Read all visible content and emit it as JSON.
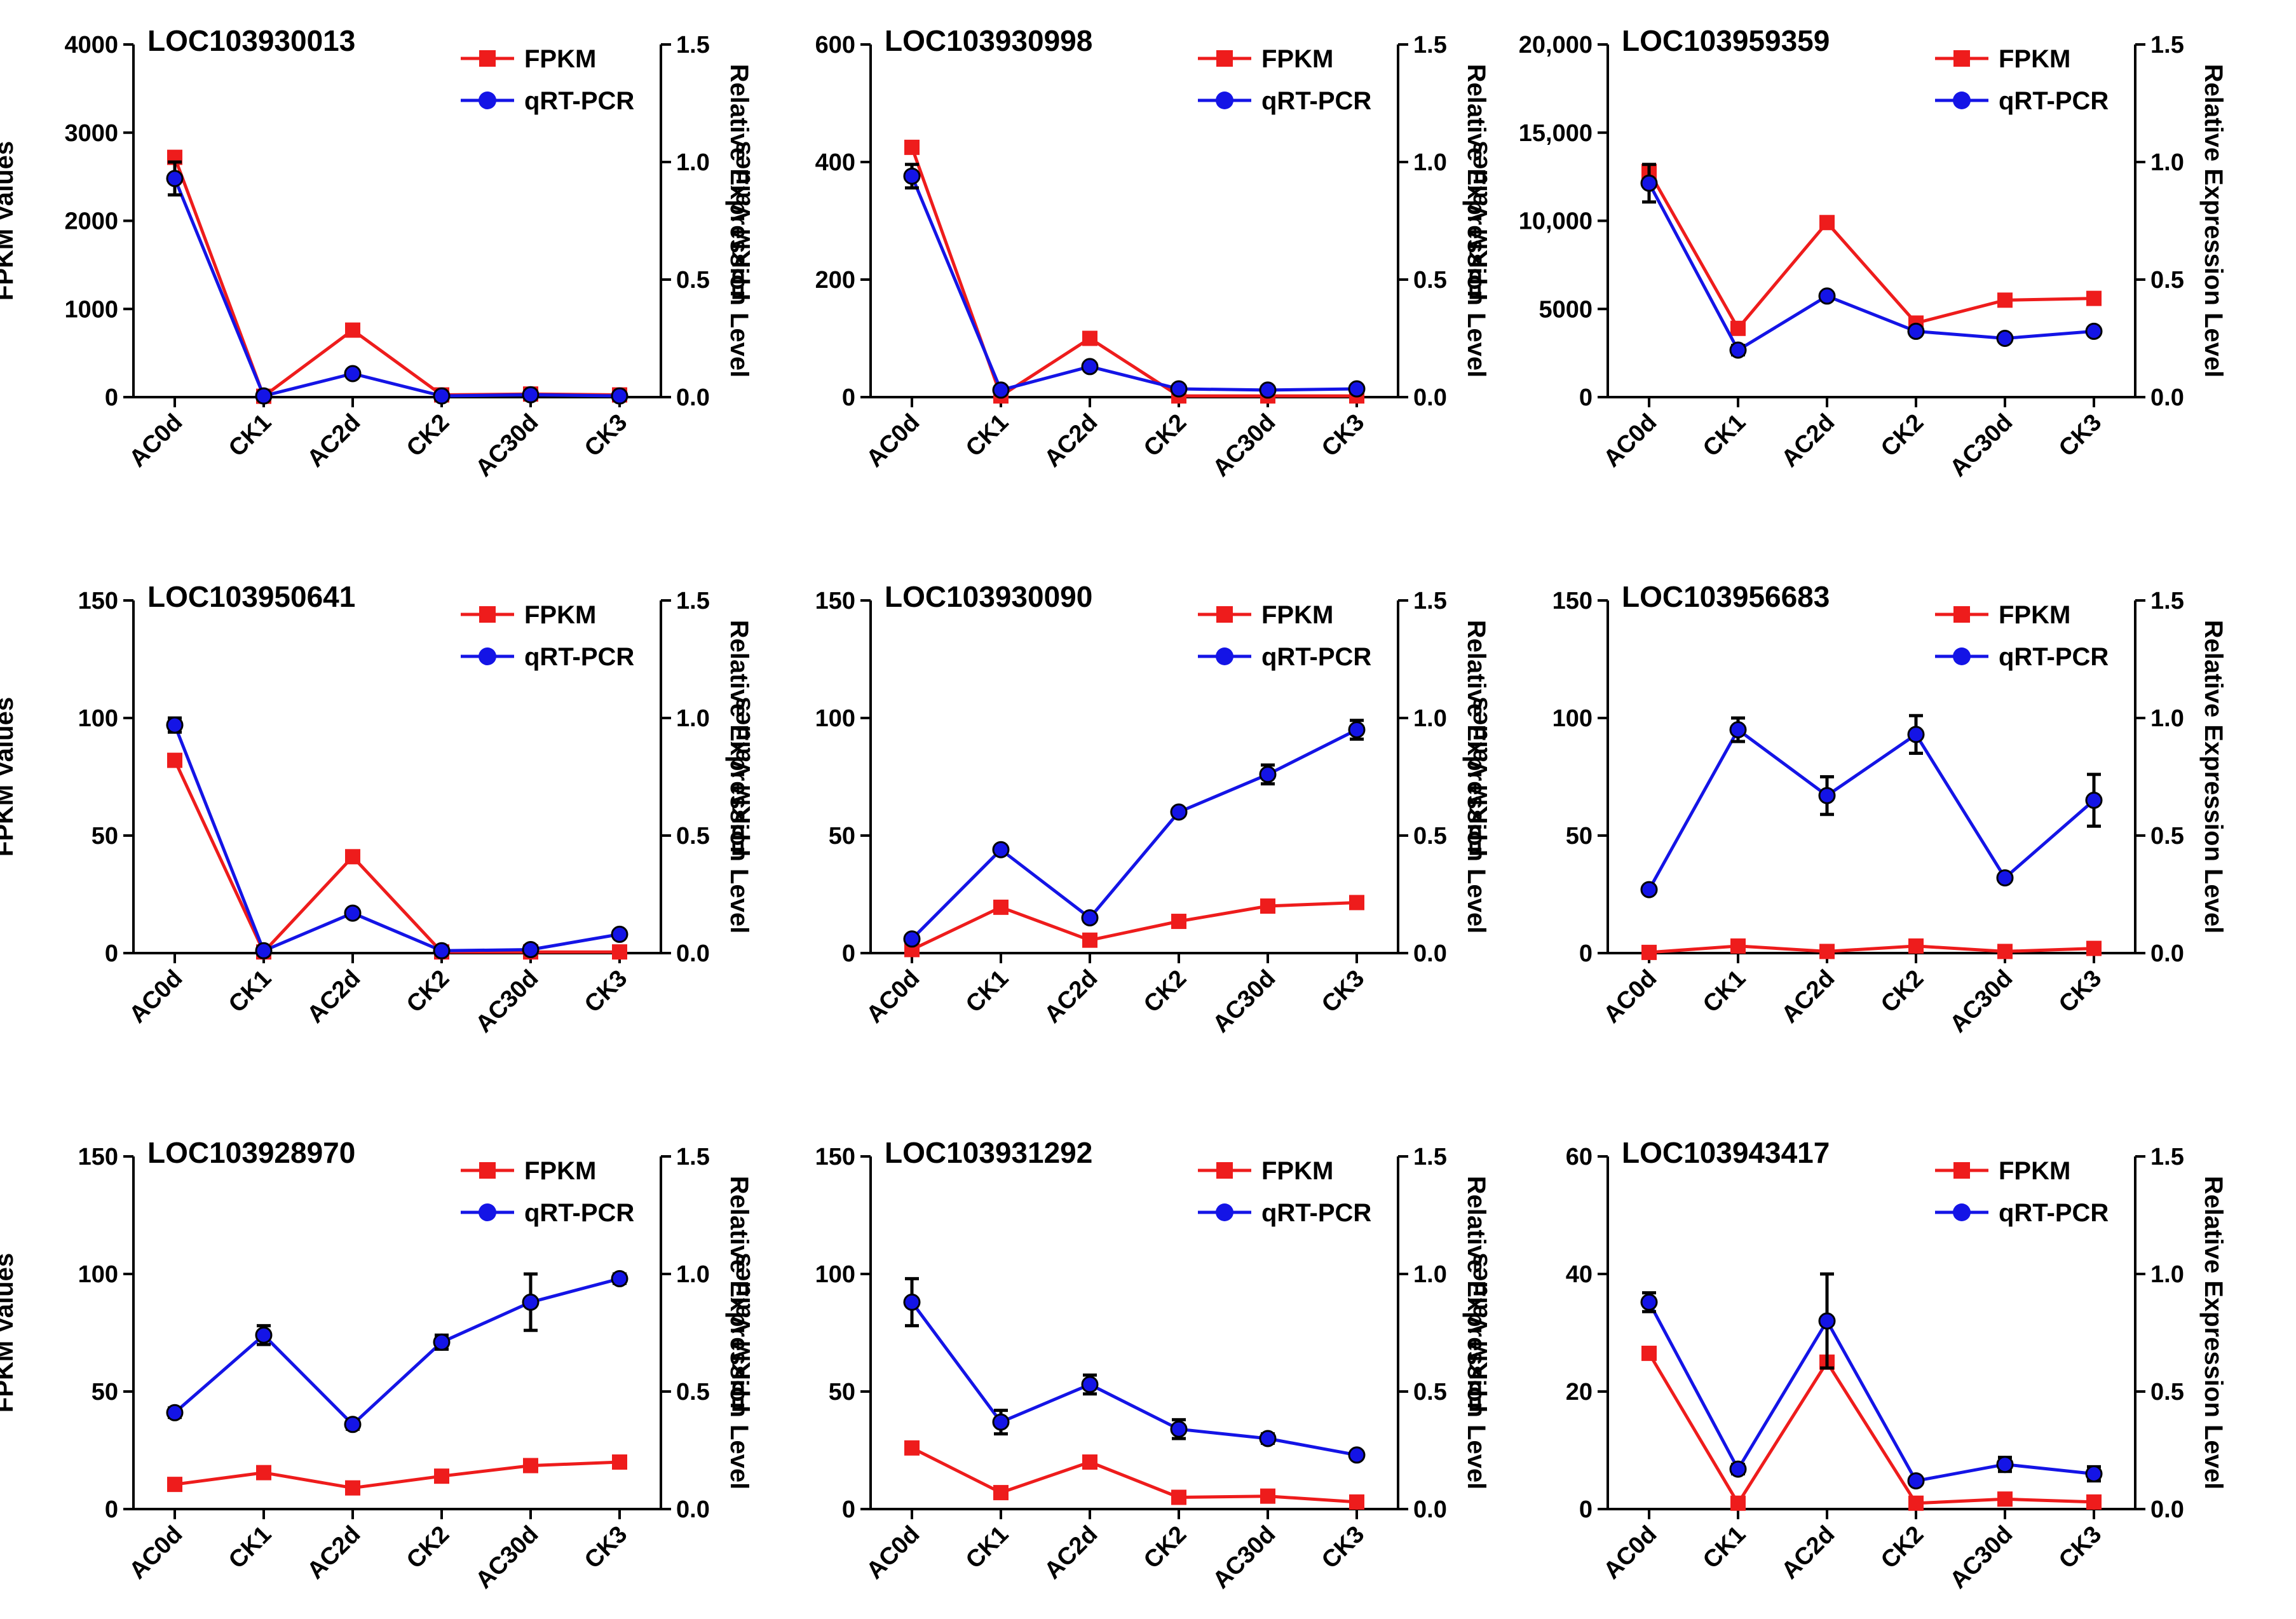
{
  "figure": {
    "legend_fpkm": "FPKM",
    "legend_qrt": "qRT-PCR",
    "colors": {
      "fpkm": "#ee1c1c",
      "qrt": "#1414e6",
      "axis": "#000000"
    }
  },
  "chart_data": [
    {
      "type": "line",
      "title": "LOC103930013",
      "categories": [
        "AC0d",
        "CK1",
        "AC2d",
        "CK2",
        "AC30d",
        "CK3"
      ],
      "ylabel": "FPKM Values",
      "y2label": "Relative Expression Level",
      "ylim": [
        0,
        4000
      ],
      "yticks": [
        0,
        1000,
        2000,
        3000,
        4000
      ],
      "yticklabels": [
        "0",
        "1000",
        "2000",
        "3000",
        "4000"
      ],
      "y2lim": [
        0,
        1.5
      ],
      "y2ticks": [
        0.0,
        0.5,
        1.0,
        1.5
      ],
      "y2ticklabels": [
        "0.0",
        "0.5",
        "1.0",
        "1.5"
      ],
      "series": [
        {
          "name": "FPKM",
          "axis": "left",
          "values": [
            2720,
            10,
            760,
            25,
            35,
            25
          ]
        },
        {
          "name": "qRT-PCR",
          "axis": "right",
          "values": [
            0.93,
            0.005,
            0.1,
            0.005,
            0.01,
            0.005
          ],
          "errors": [
            0.07,
            0,
            0,
            0,
            0,
            0
          ]
        }
      ]
    },
    {
      "type": "line",
      "title": "LOC103930998",
      "categories": [
        "AC0d",
        "CK1",
        "AC2d",
        "CK2",
        "AC30d",
        "CK3"
      ],
      "ylabel": "FPKM Values",
      "y2label": "Relative Expression Level",
      "ylim": [
        0,
        600
      ],
      "yticks": [
        0,
        200,
        400,
        600
      ],
      "yticklabels": [
        "0",
        "200",
        "400",
        "600"
      ],
      "y2lim": [
        0,
        1.5
      ],
      "y2ticks": [
        0.0,
        0.5,
        1.0,
        1.5
      ],
      "y2ticklabels": [
        "0.0",
        "0.5",
        "1.0",
        "1.5"
      ],
      "series": [
        {
          "name": "FPKM",
          "axis": "left",
          "values": [
            425,
            2,
            100,
            2,
            2,
            2
          ]
        },
        {
          "name": "qRT-PCR",
          "axis": "right",
          "values": [
            0.94,
            0.03,
            0.13,
            0.035,
            0.03,
            0.035
          ],
          "errors": [
            0.05,
            0,
            0,
            0,
            0,
            0
          ]
        }
      ]
    },
    {
      "type": "line",
      "title": "LOC103959359",
      "categories": [
        "AC0d",
        "CK1",
        "AC2d",
        "CK2",
        "AC30d",
        "CK3"
      ],
      "ylabel": "FPKM Values",
      "y2label": "Relative Expression Level",
      "ylim": [
        0,
        20000
      ],
      "yticks": [
        0,
        5000,
        10000,
        15000,
        20000
      ],
      "yticklabels": [
        "0",
        "5000",
        "10,000",
        "15,000",
        "20,000"
      ],
      "y2lim": [
        0,
        1.5
      ],
      "y2ticks": [
        0.0,
        0.5,
        1.0,
        1.5
      ],
      "y2ticklabels": [
        "0.0",
        "0.5",
        "1.0",
        "1.5"
      ],
      "series": [
        {
          "name": "FPKM",
          "axis": "left",
          "values": [
            12800,
            3900,
            9900,
            4200,
            5500,
            5600
          ]
        },
        {
          "name": "qRT-PCR",
          "axis": "right",
          "values": [
            0.91,
            0.2,
            0.43,
            0.28,
            0.25,
            0.28
          ],
          "errors": [
            0.08,
            0.02,
            0,
            0.01,
            0,
            0
          ]
        }
      ]
    },
    {
      "type": "line",
      "title": "LOC103950641",
      "categories": [
        "AC0d",
        "CK1",
        "AC2d",
        "CK2",
        "AC30d",
        "CK3"
      ],
      "ylabel": "FPKM Values",
      "y2label": "Relative Expression Level",
      "ylim": [
        0,
        150
      ],
      "yticks": [
        0,
        50,
        100,
        150
      ],
      "yticklabels": [
        "0",
        "50",
        "100",
        "150"
      ],
      "y2lim": [
        0,
        1.5
      ],
      "y2ticks": [
        0.0,
        0.5,
        1.0,
        1.5
      ],
      "y2ticklabels": [
        "0.0",
        "0.5",
        "1.0",
        "1.5"
      ],
      "series": [
        {
          "name": "FPKM",
          "axis": "left",
          "values": [
            82,
            0.5,
            41,
            0.5,
            0.5,
            0.5
          ]
        },
        {
          "name": "qRT-PCR",
          "axis": "right",
          "values": [
            0.97,
            0.01,
            0.17,
            0.01,
            0.015,
            0.08
          ],
          "errors": [
            0.03,
            0,
            0,
            0,
            0,
            0
          ]
        }
      ]
    },
    {
      "type": "line",
      "title": "LOC103930090",
      "categories": [
        "AC0d",
        "CK1",
        "AC2d",
        "CK2",
        "AC30d",
        "CK3"
      ],
      "ylabel": "FPKM Values",
      "y2label": "Relative Expression Level",
      "ylim": [
        0,
        150
      ],
      "yticks": [
        0,
        50,
        100,
        150
      ],
      "yticklabels": [
        "0",
        "50",
        "100",
        "150"
      ],
      "y2lim": [
        0,
        1.5
      ],
      "y2ticks": [
        0.0,
        0.5,
        1.0,
        1.5
      ],
      "y2ticklabels": [
        "0.0",
        "0.5",
        "1.0",
        "1.5"
      ],
      "series": [
        {
          "name": "FPKM",
          "axis": "left",
          "values": [
            1.5,
            19.5,
            5.5,
            13.5,
            20,
            21.5
          ]
        },
        {
          "name": "qRT-PCR",
          "axis": "right",
          "values": [
            0.06,
            0.44,
            0.15,
            0.6,
            0.76,
            0.95
          ],
          "errors": [
            0,
            0,
            0,
            0,
            0.04,
            0.04
          ]
        }
      ]
    },
    {
      "type": "line",
      "title": "LOC103956683",
      "categories": [
        "AC0d",
        "CK1",
        "AC2d",
        "CK2",
        "AC30d",
        "CK3"
      ],
      "ylabel": "FPKM Values",
      "y2label": "Relative Expression Level",
      "ylim": [
        0,
        150
      ],
      "yticks": [
        0,
        50,
        100,
        150
      ],
      "yticklabels": [
        "0",
        "50",
        "100",
        "150"
      ],
      "y2lim": [
        0,
        1.5
      ],
      "y2ticks": [
        0.0,
        0.5,
        1.0,
        1.5
      ],
      "y2ticklabels": [
        "0.0",
        "0.5",
        "1.0",
        "1.5"
      ],
      "series": [
        {
          "name": "FPKM",
          "axis": "left",
          "values": [
            0.3,
            3,
            0.7,
            3,
            0.7,
            2
          ]
        },
        {
          "name": "qRT-PCR",
          "axis": "right",
          "values": [
            0.27,
            0.95,
            0.67,
            0.93,
            0.32,
            0.65
          ],
          "errors": [
            0,
            0.05,
            0.08,
            0.08,
            0,
            0.11
          ]
        }
      ]
    },
    {
      "type": "line",
      "title": "LOC103928970",
      "categories": [
        "AC0d",
        "CK1",
        "AC2d",
        "CK2",
        "AC30d",
        "CK3"
      ],
      "ylabel": "FPKM Values",
      "y2label": "Relative Expression Level",
      "ylim": [
        0,
        150
      ],
      "yticks": [
        0,
        50,
        100,
        150
      ],
      "yticklabels": [
        "0",
        "50",
        "100",
        "150"
      ],
      "y2lim": [
        0,
        1.5
      ],
      "y2ticks": [
        0.0,
        0.5,
        1.0,
        1.5
      ],
      "y2ticklabels": [
        "0.0",
        "0.5",
        "1.0",
        "1.5"
      ],
      "series": [
        {
          "name": "FPKM",
          "axis": "left",
          "values": [
            10.5,
            15.5,
            9,
            14,
            18.5,
            20
          ]
        },
        {
          "name": "qRT-PCR",
          "axis": "right",
          "values": [
            0.41,
            0.74,
            0.36,
            0.71,
            0.88,
            0.98
          ],
          "errors": [
            0.02,
            0.04,
            0.02,
            0.03,
            0.12,
            0.02
          ]
        }
      ]
    },
    {
      "type": "line",
      "title": "LOC103931292",
      "categories": [
        "AC0d",
        "CK1",
        "AC2d",
        "CK2",
        "AC30d",
        "CK3"
      ],
      "ylabel": "FPKM Values",
      "y2label": "Relative Expression Level",
      "ylim": [
        0,
        150
      ],
      "yticks": [
        0,
        50,
        100,
        150
      ],
      "yticklabels": [
        "0",
        "50",
        "100",
        "150"
      ],
      "y2lim": [
        0,
        1.5
      ],
      "y2ticks": [
        0.0,
        0.5,
        1.0,
        1.5
      ],
      "y2ticklabels": [
        "0.0",
        "0.5",
        "1.0",
        "1.5"
      ],
      "series": [
        {
          "name": "FPKM",
          "axis": "left",
          "values": [
            26,
            7,
            20,
            5,
            5.5,
            3
          ]
        },
        {
          "name": "qRT-PCR",
          "axis": "right",
          "values": [
            0.88,
            0.37,
            0.53,
            0.34,
            0.3,
            0.23
          ],
          "errors": [
            0.1,
            0.05,
            0.04,
            0.04,
            0.02,
            0.01
          ]
        }
      ]
    },
    {
      "type": "line",
      "title": "LOC103943417",
      "categories": [
        "AC0d",
        "CK1",
        "AC2d",
        "CK2",
        "AC30d",
        "CK3"
      ],
      "ylabel": "FPKM Values",
      "y2label": "Relative Expression Level",
      "ylim": [
        0,
        60
      ],
      "yticks": [
        0,
        20,
        40,
        60
      ],
      "yticklabels": [
        "0",
        "20",
        "40",
        "60"
      ],
      "y2lim": [
        0,
        1.5
      ],
      "y2ticks": [
        0.0,
        0.5,
        1.0,
        1.5
      ],
      "y2ticklabels": [
        "0.0",
        "0.5",
        "1.0",
        "1.5"
      ],
      "series": [
        {
          "name": "FPKM",
          "axis": "left",
          "values": [
            26.5,
            1,
            25,
            1,
            1.7,
            1.2
          ]
        },
        {
          "name": "qRT-PCR",
          "axis": "right",
          "values": [
            0.88,
            0.17,
            0.8,
            0.12,
            0.19,
            0.15
          ],
          "errors": [
            0.04,
            0.02,
            0.2,
            0.01,
            0.03,
            0.03
          ]
        }
      ]
    }
  ]
}
